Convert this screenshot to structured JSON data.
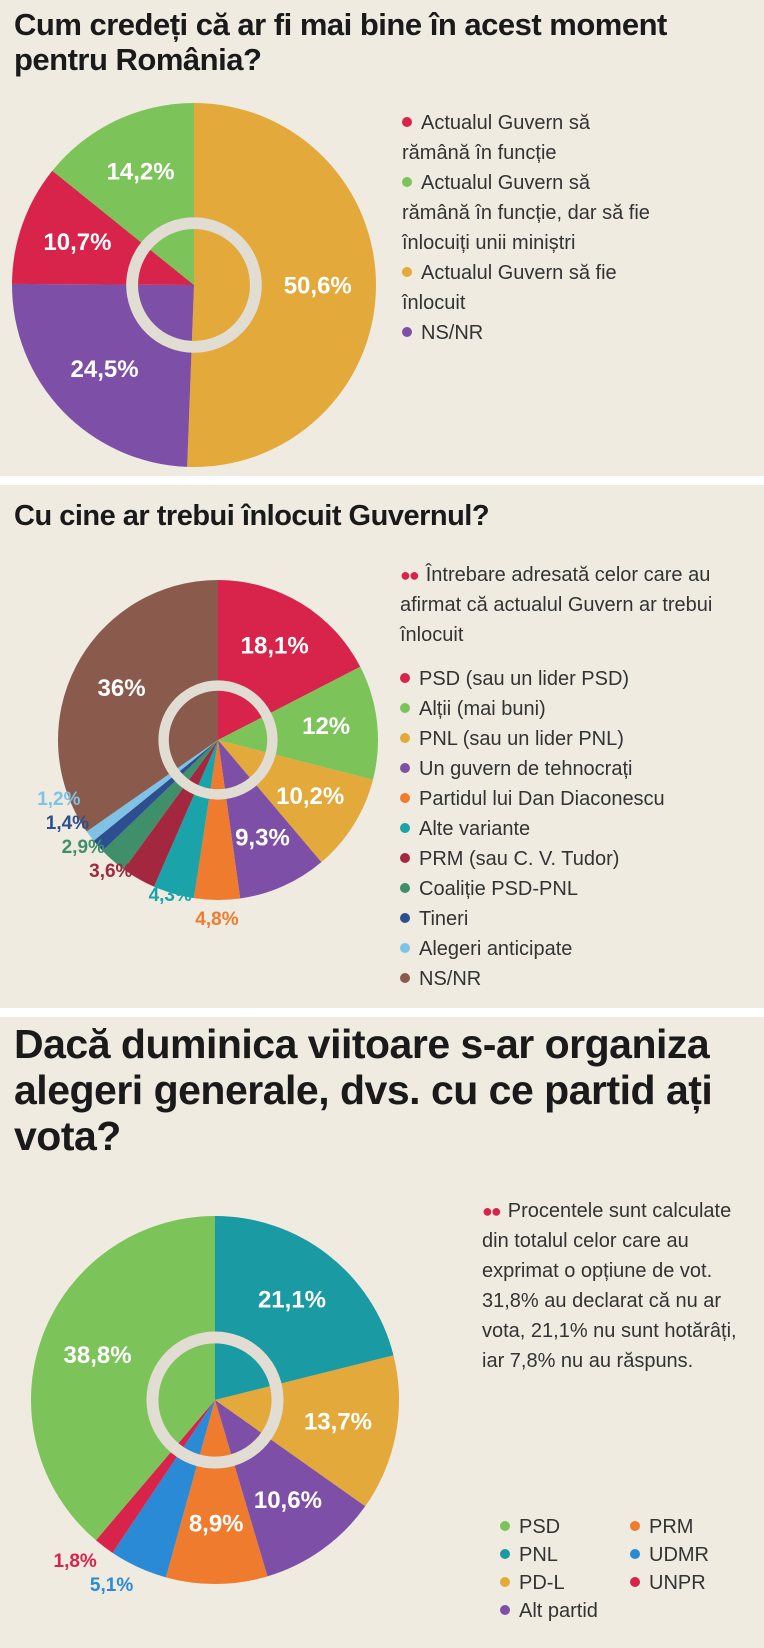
{
  "chart_data": [
    {
      "type": "pie",
      "title": "Cum credeți că ar fi mai bine în acest moment pentru România?",
      "categories": [
        "Actualul Guvern să rămână în funcție",
        "Actualul Guvern să rămână în funcție, dar să fie înlocuiți unii miniștri",
        "Actualul Guvern să fie înlocuit",
        "NS/NR"
      ],
      "values": [
        10.7,
        14.2,
        50.6,
        24.5
      ],
      "value_labels": [
        "10,7%",
        "14,2%",
        "50,6%",
        "24,5%"
      ],
      "colors": [
        "#d8234a",
        "#7cc35a",
        "#e3a93a",
        "#7e4fa6"
      ]
    },
    {
      "type": "pie",
      "title": "Cu cine ar trebui înlocuit Guvernul?",
      "note": "Întrebare adresată celor care au afirmat că actualul Guvern ar trebui înlocuit",
      "categories": [
        "PSD (sau un lider PSD)",
        "Alții (mai buni)",
        "PNL (sau un lider PNL)",
        "Un guvern de tehnocrați",
        "Partidul lui Dan Diaconescu",
        "Alte variante",
        "PRM (sau C. V. Tudor)",
        "Coaliție PSD-PNL",
        "Tineri",
        "Alegeri anticipate",
        "NS/NR"
      ],
      "values": [
        18.1,
        12,
        10.2,
        9.3,
        4.8,
        4.3,
        3.6,
        2.9,
        1.4,
        1.2,
        36
      ],
      "value_labels": [
        "18,1%",
        "12%",
        "10,2%",
        "9,3%",
        "4,8%",
        "4,3%",
        "3,6%",
        "2,9%",
        "1,4%",
        "1,2%",
        "36%"
      ],
      "colors": [
        "#d8234a",
        "#7cc35a",
        "#e3a93a",
        "#7e4fa6",
        "#ef7b2e",
        "#1aa3a8",
        "#a3283f",
        "#3f8f6b",
        "#2e4f8f",
        "#7ec3e6",
        "#8a5a4c"
      ]
    },
    {
      "type": "pie",
      "title": "Dacă duminica viitoare s-ar organiza alegeri generale, dvs. cu ce partid ați vota?",
      "note": "Procentele sunt calculate din totalul celor care au exprimat o opțiune de vot. 31,8% au declarat că nu ar vota, 21,1% nu sunt hotărâți, iar 7,8% nu au răspuns.",
      "categories": [
        "PSD",
        "PNL",
        "PD-L",
        "Alt partid",
        "PRM",
        "UDMR",
        "UNPR"
      ],
      "values": [
        38.8,
        21.1,
        13.7,
        10.6,
        8.9,
        5.1,
        1.8
      ],
      "value_labels": [
        "38,8%",
        "21,1%",
        "13,7%",
        "10,6%",
        "8,9%",
        "5,1%",
        "1,8%"
      ],
      "colors": [
        "#7cc35a",
        "#1a9aa3",
        "#e3a93a",
        "#7e4fa6",
        "#ef7b2e",
        "#2a8ad6",
        "#d8234a"
      ]
    }
  ]
}
